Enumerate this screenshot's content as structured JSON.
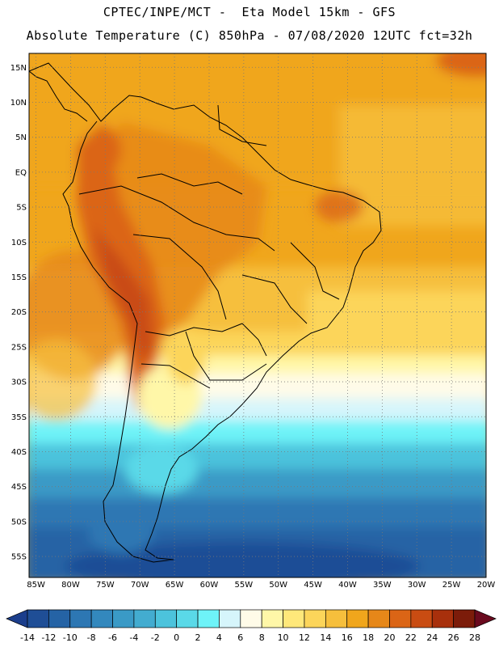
{
  "header": {
    "line1": "CPTEC/INPE/MCT -  Eta Model 15km - GFS",
    "line2": "Absolute Temperature (C) 850hPa - 07/08/2020 12UTC fct=32h"
  },
  "map": {
    "lat_labels": [
      "15N",
      "10N",
      "5N",
      "EQ",
      "5S",
      "10S",
      "15S",
      "20S",
      "25S",
      "30S",
      "35S",
      "40S",
      "45S",
      "50S",
      "55S"
    ],
    "lat_values": [
      15,
      10,
      5,
      0,
      -5,
      -10,
      -15,
      -20,
      -25,
      -30,
      -35,
      -40,
      -45,
      -50,
      -55
    ],
    "lon_labels": [
      "85W",
      "80W",
      "75W",
      "70W",
      "65W",
      "60W",
      "55W",
      "50W",
      "45W",
      "40W",
      "35W",
      "30W",
      "25W",
      "20W"
    ],
    "lon_values": [
      -85,
      -80,
      -75,
      -70,
      -65,
      -60,
      -55,
      -50,
      -45,
      -40,
      -35,
      -30,
      -25,
      -20
    ],
    "lat_range": [
      -58,
      17
    ],
    "lon_range": [
      -86,
      -20
    ],
    "gridlines": "dotted"
  },
  "colorbar": {
    "labels": [
      "-14",
      "-12",
      "-10",
      "-8",
      "-6",
      "-4",
      "-2",
      "0",
      "2",
      "4",
      "6",
      "8",
      "10",
      "12",
      "14",
      "16",
      "18",
      "20",
      "22",
      "24",
      "26",
      "28"
    ],
    "colors": [
      "#1b3e8c",
      "#1f4e96",
      "#2563a5",
      "#2d77b3",
      "#3388bd",
      "#3a9ac6",
      "#43acd0",
      "#4cc3dc",
      "#5ad9e8",
      "#6ef3f8",
      "#d6f5fb",
      "#fffbe8",
      "#fff7a8",
      "#ffe87a",
      "#fcd55a",
      "#f6bf3c",
      "#f0a61c",
      "#e68719",
      "#db6516",
      "#c94c12",
      "#a8300c",
      "#7c1c0a",
      "#6a0a1e"
    ]
  }
}
